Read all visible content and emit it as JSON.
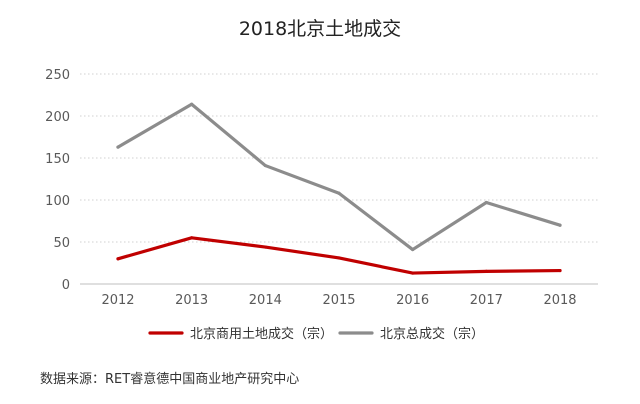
{
  "chart_data": {
    "type": "line",
    "title": "2018北京土地成交",
    "categories": [
      "2012",
      "2013",
      "2014",
      "2015",
      "2016",
      "2017",
      "2018"
    ],
    "series": [
      {
        "name": "北京商用土地成交（宗）",
        "color": "#c00000",
        "values": [
          30,
          55,
          44,
          31,
          13,
          15,
          16
        ]
      },
      {
        "name": "北京总成交（宗）",
        "color": "#8c8c8c",
        "values": [
          163,
          214,
          141,
          108,
          41,
          97,
          70
        ]
      }
    ],
    "yticks": [
      0,
      50,
      100,
      150,
      200,
      250
    ],
    "ylim": [
      0,
      250
    ],
    "xlabel": "",
    "ylabel": "",
    "grid": true,
    "grid_style": "dotted horizontal",
    "legend_position": "bottom"
  },
  "source": "数据来源：RET睿意德中国商业地产研究中心"
}
